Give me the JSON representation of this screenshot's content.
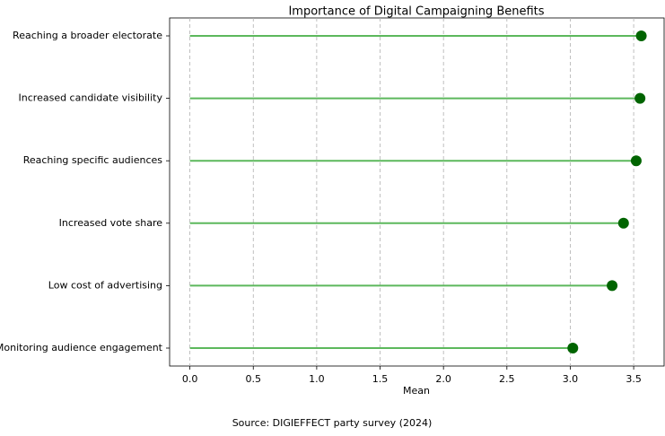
{
  "chart_data": {
    "type": "lollipop",
    "orientation": "horizontal",
    "title": "Importance of Digital Campaigning Benefits",
    "xlabel": "Mean",
    "source": "Source: DIGIEFFECT party survey (2024)",
    "categories": [
      "Reaching a broader electorate",
      "Increased candidate visibility",
      "Reaching specific audiences",
      "Increased vote share",
      "Low cost of advertising",
      "Monitoring audience engagement"
    ],
    "values": [
      3.56,
      3.55,
      3.52,
      3.42,
      3.33,
      3.02
    ],
    "color": "#006400",
    "stem_color": "#5cb85c",
    "xlim": [
      -0.16,
      3.74
    ],
    "xticks": [
      {
        "value": 0,
        "label": "0.0"
      },
      0.5,
      {
        "value": 1,
        "label": "1.0"
      },
      1.5,
      {
        "value": 2,
        "label": "2.0"
      },
      2.5,
      {
        "value": 3,
        "label": "3.0"
      },
      3.5
    ],
    "grid": true
  }
}
